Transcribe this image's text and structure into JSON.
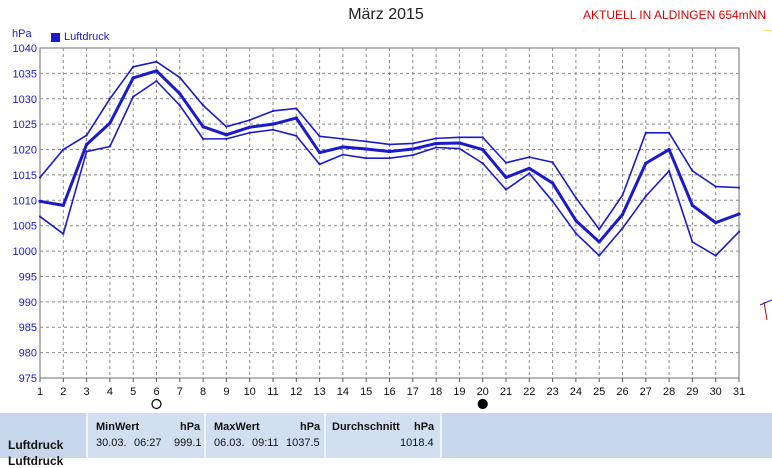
{
  "title": "März 2015",
  "station": "AKTUELL IN ALDINGEN 654mNN",
  "unit_label": "hPa",
  "legend": {
    "label": "Luftdruck",
    "color": "#1a1acc"
  },
  "moon_markers": [
    {
      "day": 6,
      "phase": "full-moon"
    },
    {
      "day": 20,
      "phase": "new-moon"
    }
  ],
  "chart_data": {
    "type": "line",
    "x": [
      1,
      2,
      3,
      4,
      5,
      6,
      7,
      8,
      9,
      10,
      11,
      12,
      13,
      14,
      15,
      16,
      17,
      18,
      19,
      20,
      21,
      22,
      23,
      24,
      25,
      26,
      27,
      28,
      29,
      30,
      31
    ],
    "xlim": [
      1,
      31
    ],
    "ylim": [
      975,
      1040
    ],
    "yticks": [
      975,
      980,
      985,
      990,
      995,
      1000,
      1005,
      1010,
      1015,
      1020,
      1025,
      1030,
      1035,
      1040
    ],
    "grid": true,
    "legend_position": "top-left",
    "series": [
      {
        "name": "Luftdruck",
        "role": "max",
        "values": [
          1014.5,
          1020,
          1022.8,
          1030,
          1036.3,
          1037.3,
          1034.2,
          1028.7,
          1024.5,
          1025.8,
          1027.6,
          1028.1,
          1022.6,
          1022.1,
          1021.6,
          1021,
          1021.2,
          1022.2,
          1022.4,
          1022.4,
          1017.4,
          1018.5,
          1017.5,
          1010.5,
          1004.3,
          1011,
          1023.3,
          1023.3,
          1015.8,
          1012.7,
          1012.5
        ],
        "color": "#1a1acc"
      },
      {
        "name": "Luftdruck",
        "role": "mean",
        "values": [
          1009.8,
          1009,
          1021,
          1025.2,
          1034.1,
          1035.5,
          1031,
          1024.5,
          1022.9,
          1024.4,
          1025,
          1026.2,
          1019.4,
          1020.5,
          1020.1,
          1019.6,
          1020.1,
          1021.2,
          1021.3,
          1020,
          1014.5,
          1016.3,
          1013.4,
          1006,
          1001.8,
          1007.2,
          1017.3,
          1020,
          1009,
          1005.6,
          1007.3
        ],
        "color": "#1a1acc"
      },
      {
        "name": "Luftdruck",
        "role": "min",
        "values": [
          1006.8,
          1003.4,
          1019.6,
          1020.6,
          1030.4,
          1033.5,
          1028.7,
          1022.1,
          1022.1,
          1023.3,
          1023.9,
          1022.7,
          1017.1,
          1019,
          1018.3,
          1018.3,
          1018.9,
          1020.4,
          1020.2,
          1017.3,
          1012.1,
          1015.3,
          1009.8,
          1003.5,
          999.1,
          1004.5,
          1010.8,
          1015.8,
          1001.8,
          999.1,
          1003.8
        ],
        "color": "#1a1acc"
      }
    ]
  },
  "stats": {
    "row_label": "Luftdruck",
    "row_label_2": "Luftdruck",
    "min": {
      "header": "MinWert",
      "unit": "hPa",
      "date": "30.03.",
      "time": "06:27",
      "value": "999.1"
    },
    "max": {
      "header": "MaxWert",
      "unit": "hPa",
      "date": "06.03.",
      "time": "09:11",
      "value": "1037.5"
    },
    "avg": {
      "header": "Durchschnitt",
      "unit": "hPa",
      "value": "1018.4"
    }
  }
}
